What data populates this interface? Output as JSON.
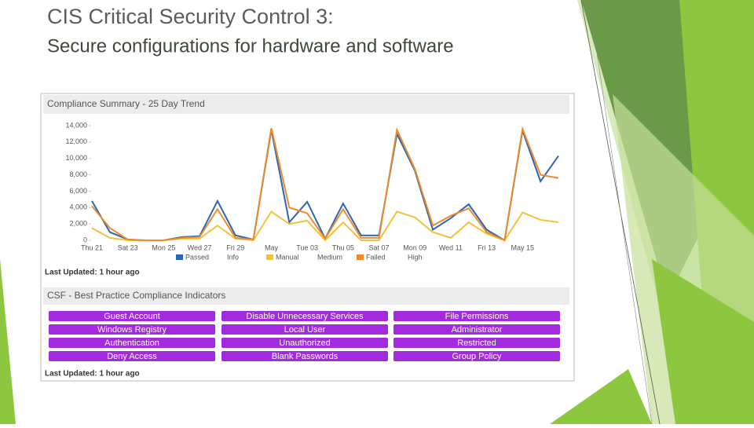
{
  "header": {
    "title": "CIS Critical Security Control 3:",
    "subtitle": "Secure configurations for hardware and software"
  },
  "panel_chart": {
    "title": "Compliance Summary - 25 Day Trend",
    "footer": "Last Updated: 1 hour ago"
  },
  "chart_data": {
    "type": "line",
    "categories": [
      "Thu 21",
      null,
      "Sat 23",
      null,
      "Mon 25",
      null,
      "Wed 27",
      null,
      "Fri 29",
      null,
      "May",
      null,
      "Tue 03",
      null,
      "Thu 05",
      null,
      "Sat 07",
      null,
      "Mon 09",
      null,
      "Wed 11",
      null,
      "Fri 13",
      null,
      "May 15",
      null,
      null
    ],
    "series": [
      {
        "name": "Passed",
        "color": "#2a66b4",
        "values": [
          4800,
          1000,
          100,
          0,
          0,
          400,
          500,
          4800,
          600,
          100,
          13500,
          2200,
          4700,
          200,
          4500,
          600,
          600,
          13000,
          8500,
          1300,
          2700,
          4400,
          1300,
          0,
          13400,
          7200,
          10300
        ]
      },
      {
        "name": "Manual",
        "color": "#f2c23a",
        "values": [
          1500,
          300,
          0,
          0,
          0,
          200,
          200,
          1800,
          200,
          0,
          3500,
          2000,
          2400,
          0,
          2200,
          0,
          0,
          3500,
          2800,
          1000,
          300,
          2200,
          800,
          0,
          3400,
          2500,
          2200
        ]
      },
      {
        "name": "Failed",
        "color": "#ee8a2a",
        "values": [
          4200,
          1500,
          100,
          0,
          0,
          300,
          400,
          3800,
          300,
          100,
          13700,
          4000,
          3300,
          200,
          3800,
          300,
          300,
          13500,
          8700,
          1800,
          3000,
          3900,
          1000,
          0,
          13600,
          8000,
          7600
        ]
      }
    ],
    "legend_labels": [
      "Info",
      "Medium",
      "High"
    ],
    "ylim": [
      0,
      14000
    ],
    "yticks": [
      0,
      {
        "value": 2000,
        "label": "2,000"
      },
      {
        "value": 4000,
        "label": "4,000"
      },
      {
        "value": 6000,
        "label": "6,000"
      },
      {
        "value": 8000,
        "label": "8,000"
      },
      {
        "value": 10000,
        "label": "10,000"
      },
      {
        "value": 12000,
        "label": "12,000"
      },
      {
        "value": 14000,
        "label": "14,000"
      }
    ],
    "grid": false
  },
  "panel_indicators": {
    "title": "CSF - Best Practice Compliance Indicators",
    "footer": "Last Updated: 1 hour ago",
    "buttons": [
      "Guest Account",
      "Disable Unnecessary Services",
      "File Permissions",
      "Windows Registry",
      "Local User",
      "Administrator",
      "Authentication",
      "Unauthorized",
      "Restricted",
      "Deny Access",
      "Blank Passwords",
      "Group Policy"
    ]
  }
}
